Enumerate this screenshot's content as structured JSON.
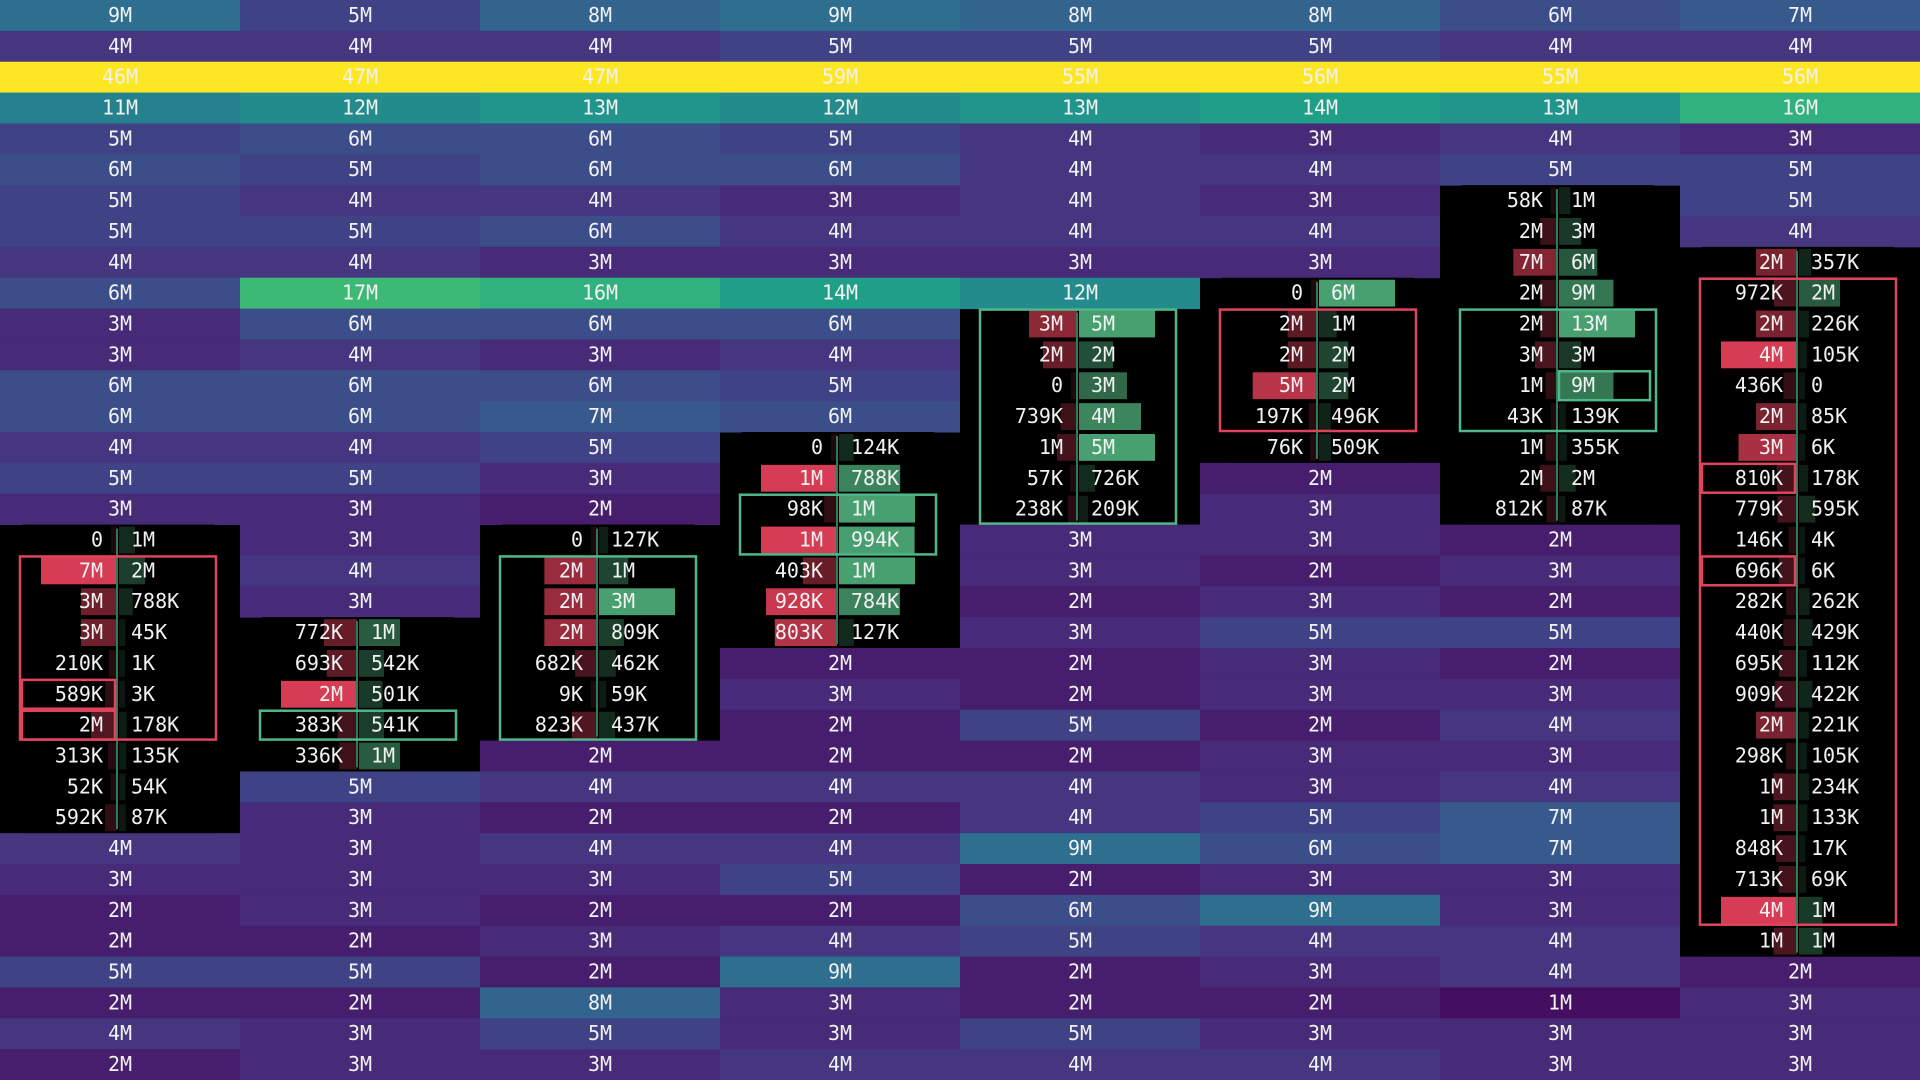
{
  "columns": [
    {
      "rows": [
        "9M",
        "4M",
        "46M",
        "11M",
        "5M",
        "6M",
        "5M",
        "5M",
        "4M",
        "6M",
        "3M",
        "3M",
        "6M",
        "6M",
        "4M",
        "5M",
        "3M",
        [
          "0",
          "1M"
        ],
        [
          "7M",
          "2M"
        ],
        [
          "3M",
          "788K"
        ],
        [
          "3M",
          "45K"
        ],
        [
          "210K",
          "1K"
        ],
        [
          "589K",
          "3K"
        ],
        [
          "2M",
          "178K"
        ],
        [
          "313K",
          "135K"
        ],
        [
          "52K",
          "54K"
        ],
        [
          "592K",
          "87K"
        ],
        "4M",
        "3M",
        "2M",
        "2M",
        "5M",
        "2M",
        "4M",
        "2M"
      ]
    },
    {
      "rows": [
        "5M",
        "4M",
        "47M",
        "12M",
        "6M",
        "5M",
        "4M",
        "5M",
        "4M",
        "17M",
        "6M",
        "4M",
        "6M",
        "6M",
        "4M",
        "5M",
        "3M",
        "3M",
        "4M",
        "3M",
        [
          "772K",
          "1M"
        ],
        [
          "693K",
          "542K"
        ],
        [
          "2M",
          "501K"
        ],
        [
          "383K",
          "541K"
        ],
        [
          "336K",
          "1M"
        ],
        "5M",
        "3M",
        "3M",
        "3M",
        "3M",
        "2M",
        "5M",
        "2M",
        "3M",
        "3M"
      ]
    },
    {
      "rows": [
        "8M",
        "4M",
        "47M",
        "13M",
        "6M",
        "6M",
        "4M",
        "6M",
        "3M",
        "16M",
        "6M",
        "3M",
        "6M",
        "7M",
        "5M",
        "3M",
        "2M",
        [
          "0",
          "127K"
        ],
        [
          "2M",
          "1M"
        ],
        [
          "2M",
          "3M"
        ],
        [
          "2M",
          "809K"
        ],
        [
          "682K",
          "462K"
        ],
        [
          "9K",
          "59K"
        ],
        [
          "823K",
          "437K"
        ],
        "2M",
        "4M",
        "2M",
        "4M",
        "3M",
        "2M",
        "3M",
        "2M",
        "8M",
        "5M",
        "3M"
      ]
    },
    {
      "rows": [
        "9M",
        "5M",
        "59M",
        "12M",
        "5M",
        "6M",
        "3M",
        "4M",
        "3M",
        "14M",
        "6M",
        "4M",
        "5M",
        "6M",
        [
          "0",
          "124K"
        ],
        [
          "1M",
          "788K"
        ],
        [
          "98K",
          "1M"
        ],
        [
          "1M",
          "994K"
        ],
        [
          "403K",
          "1M"
        ],
        [
          "928K",
          "784K"
        ],
        [
          "803K",
          "127K"
        ],
        "2M",
        "3M",
        "2M",
        "2M",
        "4M",
        "2M",
        "4M",
        "5M",
        "2M",
        "4M",
        "9M",
        "3M",
        "3M",
        "4M"
      ]
    },
    {
      "rows": [
        "8M",
        "5M",
        "55M",
        "13M",
        "4M",
        "4M",
        "4M",
        "4M",
        "3M",
        "12M",
        [
          "3M",
          "5M"
        ],
        [
          "2M",
          "2M"
        ],
        [
          "0",
          "3M"
        ],
        [
          "739K",
          "4M"
        ],
        [
          "1M",
          "5M"
        ],
        [
          "57K",
          "726K"
        ],
        [
          "238K",
          "209K"
        ],
        "3M",
        "3M",
        "2M",
        "3M",
        "2M",
        "2M",
        "5M",
        "2M",
        "4M",
        "4M",
        "9M",
        "2M",
        "6M",
        "5M",
        "2M",
        "2M",
        "5M",
        "4M"
      ]
    },
    {
      "rows": [
        "8M",
        "5M",
        "56M",
        "14M",
        "3M",
        "4M",
        "3M",
        "4M",
        "3M",
        [
          "0",
          "6M"
        ],
        [
          "2M",
          "1M"
        ],
        [
          "2M",
          "2M"
        ],
        [
          "5M",
          "2M"
        ],
        [
          "197K",
          "496K"
        ],
        [
          "76K",
          "509K"
        ],
        "2M",
        "3M",
        "3M",
        "2M",
        "3M",
        "5M",
        "3M",
        "3M",
        "2M",
        "3M",
        "3M",
        "5M",
        "6M",
        "3M",
        "9M",
        "4M",
        "3M",
        "2M",
        "3M",
        "4M"
      ]
    },
    {
      "rows": [
        "6M",
        "4M",
        "55M",
        "13M",
        "4M",
        "5M",
        [
          "58K",
          "1M"
        ],
        [
          "2M",
          "3M"
        ],
        [
          "7M",
          "6M"
        ],
        [
          "2M",
          "9M"
        ],
        [
          "2M",
          "13M"
        ],
        [
          "3M",
          "3M"
        ],
        [
          "1M",
          "9M"
        ],
        [
          "43K",
          "139K"
        ],
        [
          "1M",
          "355K"
        ],
        [
          "2M",
          "2M"
        ],
        [
          "812K",
          "87K"
        ],
        "2M",
        "3M",
        "2M",
        "5M",
        "2M",
        "3M",
        "4M",
        "3M",
        "4M",
        "7M",
        "7M",
        "3M",
        "3M",
        "4M",
        "4M",
        "1M",
        "3M",
        "3M"
      ]
    },
    {
      "rows": [
        "7M",
        "4M",
        "56M",
        "16M",
        "3M",
        "5M",
        "5M",
        "4M",
        [
          "2M",
          "357K"
        ],
        [
          "972K",
          "2M"
        ],
        [
          "2M",
          "226K"
        ],
        [
          "4M",
          "105K"
        ],
        [
          "436K",
          "0"
        ],
        [
          "2M",
          "85K"
        ],
        [
          "3M",
          "6K"
        ],
        [
          "810K",
          "178K"
        ],
        [
          "779K",
          "595K"
        ],
        [
          "146K",
          "4K"
        ],
        [
          "696K",
          "6K"
        ],
        [
          "282K",
          "262K"
        ],
        [
          "440K",
          "429K"
        ],
        [
          "695K",
          "112K"
        ],
        [
          "909K",
          "422K"
        ],
        [
          "2M",
          "221K"
        ],
        [
          "298K",
          "105K"
        ],
        [
          "1M",
          "234K"
        ],
        [
          "1M",
          "133K"
        ],
        [
          "848K",
          "17K"
        ],
        [
          "713K",
          "69K"
        ],
        [
          "4M",
          "1M"
        ],
        [
          "1M",
          "1M"
        ],
        "2M",
        "3M",
        "3M",
        "3M"
      ]
    }
  ]
}
